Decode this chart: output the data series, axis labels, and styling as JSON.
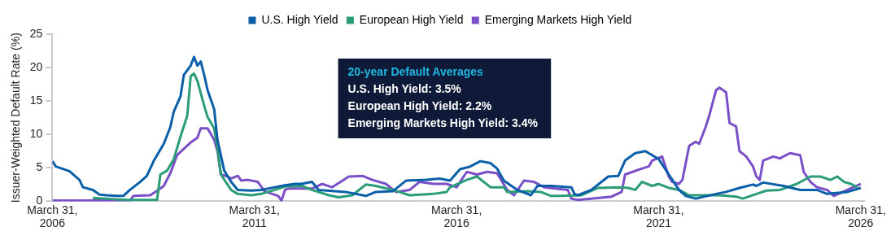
{
  "chart_data": {
    "type": "line",
    "ylabel": "Issuer-Weighted Default Rate (%)",
    "legend": "top",
    "marker": "none",
    "line_style": "solid",
    "grid": false,
    "xlim": [
      "2006-03-31",
      "2026-05"
    ],
    "xticks": [
      {
        "value": "2006-03-31",
        "label": "March 31, 2006"
      },
      {
        "value": "2011-03-31",
        "label": "March 31, 2011"
      },
      {
        "value": "2016-03-31",
        "label": "March 31, 2016"
      },
      {
        "value": "2021-03-31",
        "label": "March 31, 2021"
      },
      {
        "value": "2026-03-31",
        "label": "March 31, 2026"
      }
    ],
    "ylim": [
      0,
      25
    ],
    "yticks": [
      0,
      5,
      10,
      15,
      20,
      25
    ],
    "annotations": [
      "20-year Default Averages",
      "U.S. High Yield: 3.5%",
      "European High Yield: 2.2%",
      "Emerging Markets High Yield: 3.4%"
    ],
    "series": [
      {
        "name": "U.S. High Yield",
        "color": "#0a5fa8",
        "x": [
          "2006-04",
          "2006-05",
          "2006-09",
          "2006-12",
          "2007-01",
          "2007-04",
          "2007-06",
          "2007-08",
          "2007-11",
          "2008-01",
          "2008-03",
          "2008-06",
          "2008-08",
          "2008-10",
          "2009-01",
          "2009-03",
          "2009-04",
          "2009-06",
          "2009-07",
          "2009-09",
          "2009-10",
          "2009-11",
          "2009-12",
          "2010-01",
          "2010-02",
          "2010-04",
          "2010-05",
          "2010-07",
          "2010-09",
          "2010-11",
          "2011-03",
          "2011-06",
          "2011-10",
          "2012-01",
          "2012-04",
          "2012-06",
          "2012-09",
          "2012-11",
          "2013-07",
          "2014-01",
          "2014-04",
          "2014-09",
          "2015-01",
          "2015-07",
          "2015-11",
          "2016-02",
          "2016-05",
          "2016-08",
          "2016-11",
          "2017-02",
          "2017-04",
          "2017-06",
          "2017-10",
          "2018-02",
          "2018-04",
          "2018-08",
          "2019-02",
          "2019-03",
          "2019-04",
          "2019-08",
          "2020-01",
          "2020-04",
          "2020-06",
          "2020-09",
          "2020-12",
          "2021-02",
          "2021-04",
          "2021-07",
          "2021-10",
          "2021-12",
          "2022-03",
          "2022-09",
          "2022-12",
          "2023-04",
          "2023-08",
          "2023-09",
          "2023-11",
          "2024-05",
          "2024-10",
          "2025-03",
          "2025-06",
          "2025-12",
          "2026-04"
        ],
        "values": [
          6.0,
          5.2,
          4.5,
          3.2,
          2.1,
          1.7,
          1.0,
          0.9,
          0.8,
          0.8,
          1.7,
          2.9,
          3.8,
          6.0,
          8.6,
          11.1,
          13.4,
          15.7,
          18.9,
          20.3,
          21.6,
          20.3,
          20.9,
          18.9,
          16.6,
          13.8,
          9.2,
          4.6,
          2.9,
          1.7,
          1.6,
          1.7,
          2.1,
          2.4,
          2.6,
          2.6,
          2.9,
          1.7,
          1.4,
          0.8,
          1.4,
          1.5,
          3.1,
          3.2,
          3.4,
          3.1,
          4.8,
          5.2,
          6.0,
          5.7,
          4.9,
          3.1,
          1.7,
          0.9,
          2.3,
          2.3,
          2.1,
          1.1,
          0.9,
          1.7,
          3.7,
          3.8,
          6.1,
          7.2,
          7.5,
          6.9,
          6.3,
          4.0,
          1.7,
          0.8,
          0.4,
          1.1,
          1.4,
          2.0,
          2.5,
          2.3,
          2.8,
          2.3,
          1.7,
          1.7,
          1.1,
          1.4,
          2.0
        ]
      },
      {
        "name": "European High Yield",
        "color": "#2a9d78",
        "x": [
          "2007-04",
          "2008-02",
          "2008-11",
          "2008-12",
          "2009-02",
          "2009-04",
          "2009-06",
          "2009-08",
          "2009-09",
          "2009-10",
          "2009-11",
          "2010-01",
          "2010-02",
          "2010-04",
          "2010-05",
          "2010-06",
          "2010-09",
          "2010-11",
          "2011-03",
          "2011-06",
          "2011-10",
          "2012-01",
          "2012-06",
          "2012-09",
          "2013-02",
          "2013-05",
          "2013-09",
          "2014-01",
          "2014-04",
          "2014-09",
          "2015-02",
          "2015-09",
          "2016-01",
          "2016-02",
          "2016-07",
          "2016-10",
          "2017-02",
          "2017-06",
          "2017-07",
          "2018-01",
          "2018-05",
          "2018-08",
          "2018-11",
          "2019-05",
          "2019-10",
          "2020-04",
          "2020-07",
          "2020-09",
          "2020-11",
          "2021-02",
          "2021-04",
          "2021-07",
          "2021-10",
          "2022-01",
          "2022-06",
          "2022-10",
          "2023-03",
          "2023-05",
          "2023-09",
          "2023-12",
          "2024-04",
          "2024-09",
          "2025-01",
          "2025-04",
          "2025-07",
          "2025-09",
          "2025-11",
          "2026-01",
          "2026-03"
        ],
        "values": [
          0.5,
          0.2,
          0.2,
          4.0,
          4.6,
          6.3,
          9.7,
          12.8,
          18.7,
          19.1,
          18.0,
          14.3,
          12.6,
          10.9,
          8.0,
          4.0,
          1.7,
          1.1,
          0.9,
          1.1,
          1.7,
          2.2,
          2.3,
          1.7,
          0.9,
          0.6,
          0.9,
          2.5,
          2.3,
          1.7,
          0.9,
          1.1,
          1.4,
          2.1,
          3.2,
          3.7,
          2.1,
          2.1,
          1.4,
          1.5,
          1.4,
          0.8,
          0.8,
          0.9,
          2.0,
          2.1,
          2.0,
          1.7,
          2.9,
          2.3,
          2.6,
          2.0,
          1.7,
          0.9,
          0.9,
          0.9,
          0.7,
          0.4,
          1.1,
          1.6,
          1.7,
          2.6,
          3.7,
          3.7,
          3.2,
          3.7,
          2.9,
          2.6,
          2.1
        ]
      },
      {
        "name": "Emerging Markets High Yield",
        "color": "#7b4fc8",
        "x": [
          "2006-04",
          "2008-03",
          "2008-04",
          "2008-09",
          "2008-12",
          "2009-01",
          "2009-03",
          "2009-05",
          "2009-09",
          "2009-11",
          "2009-12",
          "2010-02",
          "2010-04",
          "2010-05",
          "2010-06",
          "2010-08",
          "2010-09",
          "2010-11",
          "2010-12",
          "2011-02",
          "2011-05",
          "2011-07",
          "2011-11",
          "2011-12",
          "2012-01",
          "2012-02",
          "2012-03",
          "2012-09",
          "2012-12",
          "2013-03",
          "2013-08",
          "2013-12",
          "2014-03",
          "2014-07",
          "2014-10",
          "2015-02",
          "2015-05",
          "2015-09",
          "2016-01",
          "2016-04",
          "2016-07",
          "2016-10",
          "2017-01",
          "2017-04",
          "2017-07",
          "2017-09",
          "2017-12",
          "2018-03",
          "2018-06",
          "2019-01",
          "2019-02",
          "2019-04",
          "2020-02",
          "2020-05",
          "2020-06",
          "2020-11",
          "2021-01",
          "2021-02",
          "2021-05",
          "2021-07",
          "2021-08",
          "2021-10",
          "2021-11",
          "2022-01",
          "2022-03",
          "2022-04",
          "2022-06",
          "2022-07",
          "2022-09",
          "2022-10",
          "2022-12",
          "2023-01",
          "2023-03",
          "2023-04",
          "2023-06",
          "2023-08",
          "2023-09",
          "2023-10",
          "2023-11",
          "2024-02",
          "2024-04",
          "2024-05",
          "2024-07",
          "2024-10",
          "2024-11",
          "2025-01",
          "2025-03",
          "2025-06",
          "2025-08",
          "2025-12",
          "2026-04"
        ],
        "values": [
          0.1,
          0.1,
          0.8,
          0.9,
          1.9,
          2.3,
          4.2,
          6.9,
          8.8,
          9.5,
          10.9,
          10.9,
          9.2,
          7.5,
          4.0,
          3.7,
          3.4,
          3.8,
          3.1,
          3.2,
          2.9,
          1.5,
          0.8,
          0.1,
          1.7,
          1.9,
          1.9,
          1.9,
          2.6,
          2.1,
          3.7,
          3.8,
          3.2,
          2.6,
          1.4,
          1.7,
          2.9,
          2.6,
          2.6,
          2.1,
          4.4,
          4.0,
          4.4,
          4.2,
          1.7,
          0.9,
          3.1,
          2.9,
          2.1,
          1.7,
          0.4,
          0.2,
          0.7,
          1.4,
          4.0,
          4.9,
          5.2,
          6.1,
          6.7,
          3.7,
          2.9,
          2.6,
          3.2,
          8.3,
          8.9,
          8.6,
          11.2,
          12.8,
          16.6,
          17.0,
          16.3,
          11.7,
          11.2,
          7.5,
          6.7,
          5.2,
          3.7,
          3.2,
          6.1,
          6.7,
          6.4,
          6.7,
          7.2,
          6.9,
          4.4,
          2.9,
          2.1,
          1.7,
          0.8,
          1.7,
          2.6
        ]
      }
    ]
  }
}
